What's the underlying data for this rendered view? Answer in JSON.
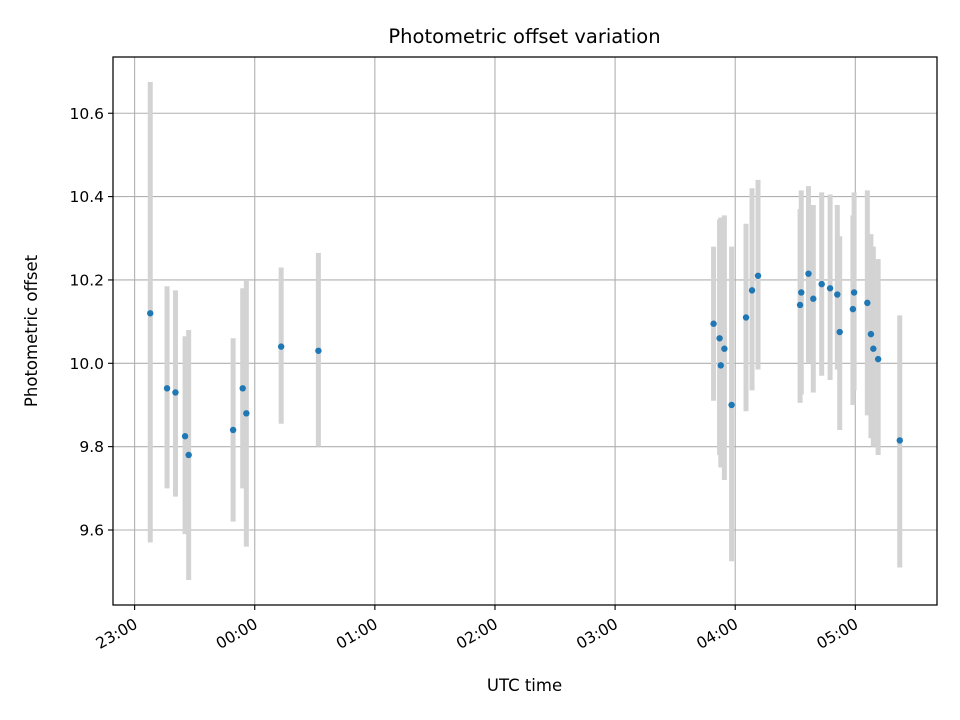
{
  "chart_data": {
    "type": "scatter",
    "title": "Photometric offset variation",
    "xlabel": "UTC time",
    "ylabel": "Photometric offset",
    "x_unit": "UTC hours (past midnight; negative = before 00:00)",
    "xlim": [
      -1.18,
      5.68
    ],
    "ylim": [
      9.42,
      10.735
    ],
    "grid": true,
    "x_ticks": [
      {
        "value": -1,
        "label": "23:00"
      },
      {
        "value": 0,
        "label": "00:00"
      },
      {
        "value": 1,
        "label": "01:00"
      },
      {
        "value": 2,
        "label": "02:00"
      },
      {
        "value": 3,
        "label": "03:00"
      },
      {
        "value": 4,
        "label": "04:00"
      },
      {
        "value": 5,
        "label": "05:00"
      }
    ],
    "y_ticks": [
      {
        "value": 9.6,
        "label": "9.6"
      },
      {
        "value": 9.8,
        "label": "9.8"
      },
      {
        "value": 10.0,
        "label": "10.0"
      },
      {
        "value": 10.2,
        "label": "10.2"
      },
      {
        "value": 10.4,
        "label": "10.4"
      },
      {
        "value": 10.6,
        "label": "10.6"
      }
    ],
    "colors": {
      "point": "#1f77b4",
      "errorbar": "#d3d3d3",
      "grid": "#b0b0b0"
    },
    "points": [
      {
        "x": -0.87,
        "y": 10.12,
        "ylo": 9.57,
        "yhi": 10.675
      },
      {
        "x": -0.73,
        "y": 9.94,
        "ylo": 9.7,
        "yhi": 10.185
      },
      {
        "x": -0.66,
        "y": 9.93,
        "ylo": 9.68,
        "yhi": 10.175
      },
      {
        "x": -0.58,
        "y": 9.825,
        "ylo": 9.59,
        "yhi": 10.065
      },
      {
        "x": -0.55,
        "y": 9.78,
        "ylo": 9.48,
        "yhi": 10.08
      },
      {
        "x": -0.18,
        "y": 9.84,
        "ylo": 9.62,
        "yhi": 10.06
      },
      {
        "x": -0.1,
        "y": 9.94,
        "ylo": 9.7,
        "yhi": 10.18
      },
      {
        "x": -0.07,
        "y": 9.88,
        "ylo": 9.56,
        "yhi": 10.2
      },
      {
        "x": 0.22,
        "y": 10.04,
        "ylo": 9.855,
        "yhi": 10.23
      },
      {
        "x": 0.53,
        "y": 10.03,
        "ylo": 9.8,
        "yhi": 10.265
      },
      {
        "x": 3.82,
        "y": 10.095,
        "ylo": 9.91,
        "yhi": 10.28
      },
      {
        "x": 3.87,
        "y": 10.06,
        "ylo": 9.78,
        "yhi": 10.345
      },
      {
        "x": 3.88,
        "y": 9.995,
        "ylo": 9.75,
        "yhi": 10.35
      },
      {
        "x": 3.91,
        "y": 10.035,
        "ylo": 9.72,
        "yhi": 10.355
      },
      {
        "x": 3.97,
        "y": 9.9,
        "ylo": 9.525,
        "yhi": 10.28
      },
      {
        "x": 4.09,
        "y": 10.11,
        "ylo": 9.885,
        "yhi": 10.335
      },
      {
        "x": 4.14,
        "y": 10.175,
        "ylo": 9.935,
        "yhi": 10.42
      },
      {
        "x": 4.19,
        "y": 10.21,
        "ylo": 9.985,
        "yhi": 10.44
      },
      {
        "x": 4.54,
        "y": 10.14,
        "ylo": 9.905,
        "yhi": 10.37
      },
      {
        "x": 4.55,
        "y": 10.17,
        "ylo": 9.925,
        "yhi": 10.415
      },
      {
        "x": 4.61,
        "y": 10.215,
        "ylo": 10.0,
        "yhi": 10.425
      },
      {
        "x": 4.65,
        "y": 10.155,
        "ylo": 9.93,
        "yhi": 10.38
      },
      {
        "x": 4.72,
        "y": 10.19,
        "ylo": 9.97,
        "yhi": 10.41
      },
      {
        "x": 4.79,
        "y": 10.18,
        "ylo": 9.96,
        "yhi": 10.405
      },
      {
        "x": 4.85,
        "y": 10.165,
        "ylo": 9.985,
        "yhi": 10.38
      },
      {
        "x": 4.87,
        "y": 10.075,
        "ylo": 9.84,
        "yhi": 10.305
      },
      {
        "x": 4.98,
        "y": 10.13,
        "ylo": 9.9,
        "yhi": 10.355
      },
      {
        "x": 4.99,
        "y": 10.17,
        "ylo": 9.935,
        "yhi": 10.41
      },
      {
        "x": 5.1,
        "y": 10.145,
        "ylo": 9.875,
        "yhi": 10.415
      },
      {
        "x": 5.13,
        "y": 10.07,
        "ylo": 9.82,
        "yhi": 10.31
      },
      {
        "x": 5.15,
        "y": 10.035,
        "ylo": 9.8,
        "yhi": 10.28
      },
      {
        "x": 5.19,
        "y": 10.01,
        "ylo": 9.78,
        "yhi": 10.25
      },
      {
        "x": 5.37,
        "y": 9.815,
        "ylo": 9.51,
        "yhi": 10.115
      }
    ]
  }
}
